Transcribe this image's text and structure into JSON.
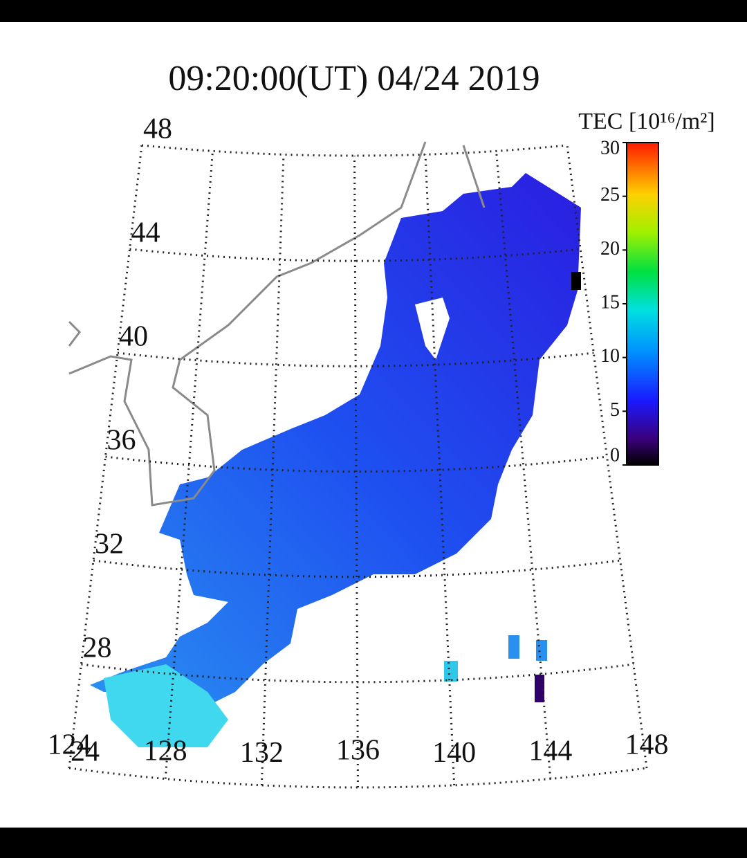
{
  "title": "09:20:00(UT)  04/24 2019",
  "colorbar": {
    "label": "TEC [10¹⁶/m²]",
    "lim": [
      0,
      30
    ],
    "ticks": [
      0,
      5,
      10,
      15,
      20,
      25,
      30
    ]
  },
  "latitudes": [
    48,
    44,
    40,
    36,
    32,
    28,
    24
  ],
  "longitudes": [
    124,
    128,
    132,
    136,
    140,
    144,
    148
  ]
}
